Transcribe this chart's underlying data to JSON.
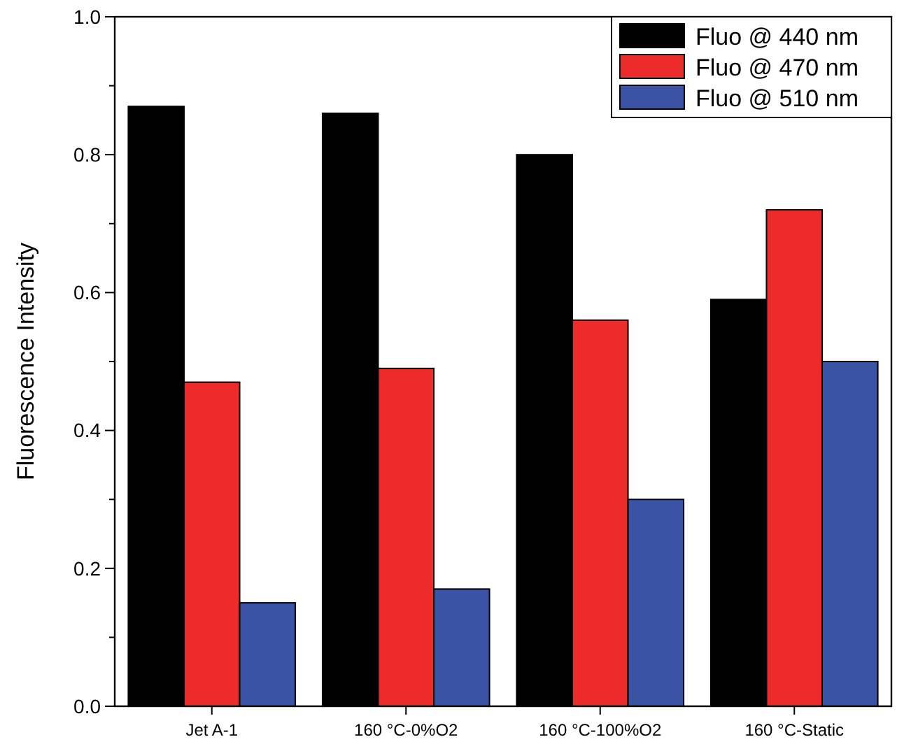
{
  "chart_data": {
    "type": "bar",
    "ylabel": "Fluorescence Intensity",
    "categories": [
      "Jet A-1",
      "160 °C-0%O2",
      "160 °C-100%O2",
      "160 °C-Static"
    ],
    "series": [
      {
        "name": "Fluo @ 440 nm",
        "color": "#000000",
        "values": [
          0.87,
          0.86,
          0.8,
          0.59
        ]
      },
      {
        "name": "Fluo @ 470 nm",
        "color": "#ee2b2b",
        "values": [
          0.47,
          0.49,
          0.56,
          0.72
        ]
      },
      {
        "name": "Fluo @ 510 nm",
        "color": "#3a53a4",
        "values": [
          0.15,
          0.17,
          0.3,
          0.5
        ]
      }
    ],
    "ylim": [
      0,
      1
    ],
    "yticks": [
      {
        "value": 0,
        "label": "0.0"
      },
      {
        "value": 0.2,
        "label": "0.2"
      },
      {
        "value": 0.4,
        "label": "0.4"
      },
      {
        "value": 0.6,
        "label": "0.6"
      },
      {
        "value": 0.8,
        "label": "0.8"
      },
      {
        "value": 1,
        "label": "1.0"
      }
    ],
    "grid": false,
    "legend": "top right"
  }
}
